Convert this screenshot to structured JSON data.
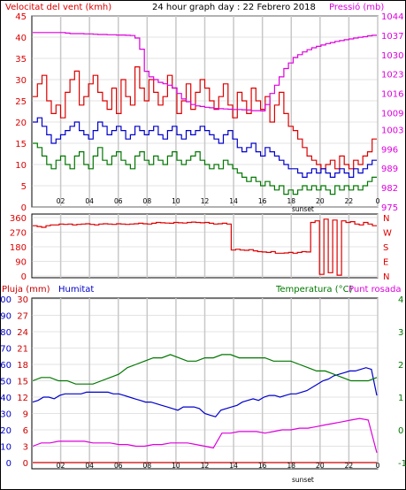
{
  "colors": {
    "wind": "#dd0000",
    "gust": "#dd0000",
    "speed": "#0000cc",
    "avg": "#007700",
    "pressure": "#dd00dd",
    "rain": "#cc0000",
    "humidity": "#0000cc",
    "temp": "#007700",
    "dew": "#dd00dd",
    "grid": "#c8c8c8",
    "axis": "#000000"
  },
  "chart_data": [
    {
      "type": "line",
      "title": "24 hour graph day : 22 Febrero 2018",
      "left_label": "Velocitat del vent (kmh)",
      "right_label": "Pressió (mb)",
      "x_ticks": [
        "02",
        "04",
        "06",
        "08",
        "10",
        "12",
        "14",
        "16",
        "18",
        "20",
        "22",
        "0"
      ],
      "x_note": "sunset",
      "ylim": [
        0,
        45
      ],
      "y_ticks": [
        "0",
        "5",
        "10",
        "15",
        "20",
        "25",
        "30",
        "35",
        "40",
        "45"
      ],
      "y2lim": [
        975,
        1044
      ],
      "y2_ticks": [
        "975",
        "982",
        "989",
        "996",
        "1003",
        "1009",
        "1016",
        "1023",
        "1030",
        "1037",
        "1044"
      ],
      "series": [
        {
          "key": "gust",
          "axis": "left",
          "values": [
            26,
            29,
            31,
            25,
            22,
            24,
            21,
            27,
            30,
            32,
            24,
            26,
            29,
            31,
            27,
            25,
            23,
            28,
            22,
            30,
            26,
            24,
            33,
            28,
            25,
            30,
            27,
            24,
            26,
            31,
            28,
            22,
            25,
            29,
            23,
            27,
            30,
            28,
            25,
            23,
            26,
            29,
            24,
            21,
            27,
            25,
            22,
            28,
            25,
            23,
            26,
            20,
            24,
            27,
            22,
            19,
            18,
            16,
            14,
            12,
            11,
            10,
            9,
            10,
            11,
            9,
            12,
            10,
            9,
            11,
            10,
            12,
            13,
            16
          ]
        },
        {
          "key": "speed",
          "axis": "left",
          "values": [
            20,
            21,
            19,
            17,
            15,
            16,
            17,
            18,
            19,
            20,
            18,
            17,
            16,
            18,
            20,
            19,
            17,
            18,
            19,
            18,
            16,
            17,
            19,
            18,
            17,
            18,
            19,
            17,
            16,
            18,
            19,
            17,
            16,
            18,
            17,
            18,
            19,
            18,
            17,
            16,
            15,
            17,
            18,
            16,
            14,
            13,
            14,
            15,
            13,
            12,
            14,
            13,
            12,
            11,
            10,
            9,
            9,
            8,
            7,
            8,
            9,
            8,
            9,
            8,
            7,
            8,
            9,
            8,
            7,
            9,
            8,
            9,
            10,
            11
          ]
        },
        {
          "key": "avg",
          "axis": "left",
          "values": [
            15,
            14,
            12,
            10,
            9,
            11,
            12,
            10,
            9,
            12,
            13,
            10,
            9,
            12,
            14,
            11,
            10,
            12,
            13,
            11,
            10,
            9,
            12,
            13,
            11,
            10,
            12,
            11,
            10,
            12,
            13,
            11,
            10,
            11,
            12,
            13,
            11,
            10,
            9,
            10,
            9,
            11,
            10,
            9,
            8,
            7,
            6,
            7,
            6,
            5,
            6,
            5,
            4,
            5,
            3,
            4,
            3,
            4,
            5,
            4,
            5,
            4,
            5,
            4,
            3,
            5,
            4,
            5,
            4,
            5,
            4,
            5,
            6,
            7
          ]
        },
        {
          "key": "pressure",
          "axis": "right",
          "values": [
            1038,
            1038,
            1038,
            1038,
            1038,
            1038,
            1038,
            1037.8,
            1037.6,
            1037.6,
            1037.6,
            1037.5,
            1037.5,
            1037.4,
            1037.3,
            1037.3,
            1037.2,
            1037.2,
            1037.1,
            1037.1,
            1037,
            1036.9,
            1036,
            1032,
            1024,
            1022,
            1021,
            1020,
            1019.5,
            1019,
            1018,
            1016,
            1014,
            1013,
            1012,
            1011.5,
            1011.3,
            1011,
            1010.8,
            1010.6,
            1010.5,
            1010.4,
            1010.3,
            1010.2,
            1010.2,
            1010.1,
            1010,
            1009.8,
            1009.8,
            1009.7,
            1012,
            1016,
            1019,
            1022,
            1025,
            1027,
            1029,
            1030,
            1031,
            1031.8,
            1032.5,
            1033,
            1033.5,
            1034,
            1034.4,
            1034.8,
            1035.1,
            1035.4,
            1035.7,
            1036,
            1036.3,
            1036.5,
            1036.8,
            1037
          ]
        }
      ]
    },
    {
      "type": "line",
      "y_ticks": [
        "0",
        "90",
        "180",
        "270",
        "360"
      ],
      "ylim": [
        0,
        360
      ],
      "right_ticks": [
        "N",
        "W",
        "S",
        "E",
        "N"
      ],
      "series": [
        {
          "key": "dir",
          "values": [
            310,
            305,
            300,
            310,
            315,
            315,
            320,
            318,
            320,
            315,
            318,
            320,
            322,
            318,
            315,
            320,
            322,
            320,
            318,
            322,
            320,
            318,
            320,
            322,
            325,
            322,
            320,
            325,
            330,
            328,
            326,
            325,
            330,
            328,
            326,
            330,
            332,
            330,
            328,
            330,
            325,
            320,
            322,
            325,
            320,
            160,
            165,
            160,
            158,
            162,
            155,
            150,
            148,
            145,
            150,
            140,
            140,
            142,
            145,
            140,
            145,
            150,
            148,
            330,
            340,
            10,
            350,
            20,
            345,
            5,
            340,
            330,
            335,
            320,
            315,
            330,
            320,
            310
          ]
        }
      ]
    },
    {
      "type": "line",
      "rain_label": "Pluja (mm)",
      "humidity_label": "Humitat",
      "temp_label": "Temperatura (°C)",
      "dew_label": "Punt rosada",
      "x_ticks": [
        "02",
        "04",
        "06",
        "08",
        "10",
        "12",
        "14",
        "16",
        "18",
        "20",
        "22",
        "0"
      ],
      "x_note": "sunset",
      "humidity_ticks": [
        "0",
        "10",
        "20",
        "30",
        "40",
        "50",
        "60",
        "70",
        "80",
        "90",
        "100"
      ],
      "rain_ticks": [
        "0",
        "3",
        "6",
        "9",
        "12",
        "15",
        "18",
        "21",
        "24",
        "27",
        "30"
      ],
      "temp_ticks": [
        "-1",
        "0",
        "1",
        "2",
        "3",
        "4"
      ],
      "hum_lim": [
        0,
        100
      ],
      "temp_lim": [
        -1,
        4
      ],
      "series": [
        {
          "key": "humidity",
          "axis": "humidity",
          "values": [
            37,
            38,
            40,
            40,
            39,
            41,
            42,
            42,
            42,
            42,
            43,
            43,
            43,
            43,
            43,
            42,
            42,
            41,
            40,
            39,
            38,
            37,
            37,
            36,
            35,
            34,
            33,
            32,
            34,
            34,
            34,
            33,
            30,
            29,
            28,
            32,
            33,
            34,
            35,
            37,
            38,
            39,
            38,
            40,
            41,
            41,
            40,
            41,
            42,
            42,
            43,
            44,
            46,
            48,
            50,
            51,
            53,
            54,
            55,
            56,
            56,
            57,
            58,
            57,
            41
          ]
        },
        {
          "key": "rain",
          "axis": "humidity",
          "values": [
            0,
            0,
            0,
            0,
            0,
            0,
            0,
            0,
            0,
            0,
            0,
            0,
            0,
            0,
            0,
            0,
            0,
            0,
            0,
            0,
            0,
            0,
            0,
            0,
            0,
            0,
            0,
            0,
            0,
            0,
            0,
            0,
            0,
            0,
            0,
            0,
            0,
            0,
            0,
            0,
            0,
            0,
            0,
            0,
            0,
            0,
            0,
            0,
            0,
            0,
            0,
            0,
            0,
            0,
            0,
            0,
            0,
            0,
            0,
            0,
            0,
            0,
            0,
            0,
            0
          ]
        },
        {
          "key": "temp",
          "axis": "temp",
          "values": [
            1.5,
            1.6,
            1.6,
            1.5,
            1.5,
            1.4,
            1.4,
            1.4,
            1.5,
            1.6,
            1.7,
            1.9,
            2.0,
            2.1,
            2.2,
            2.2,
            2.3,
            2.2,
            2.1,
            2.1,
            2.2,
            2.2,
            2.3,
            2.3,
            2.2,
            2.2,
            2.2,
            2.2,
            2.1,
            2.1,
            2.1,
            2.0,
            1.9,
            1.8,
            1.8,
            1.7,
            1.6,
            1.5,
            1.5,
            1.5,
            1.6
          ]
        },
        {
          "key": "dew",
          "axis": "temp",
          "values": [
            -0.5,
            -0.4,
            -0.4,
            -0.35,
            -0.35,
            -0.35,
            -0.35,
            -0.4,
            -0.4,
            -0.4,
            -0.45,
            -0.45,
            -0.5,
            -0.5,
            -0.45,
            -0.45,
            -0.4,
            -0.4,
            -0.4,
            -0.45,
            -0.5,
            -0.55,
            -0.1,
            -0.1,
            -0.05,
            -0.05,
            -0.05,
            -0.1,
            -0.05,
            0.0,
            0.0,
            0.05,
            0.05,
            0.1,
            0.15,
            0.2,
            0.25,
            0.3,
            0.35,
            0.3,
            -0.7
          ]
        }
      ]
    }
  ]
}
